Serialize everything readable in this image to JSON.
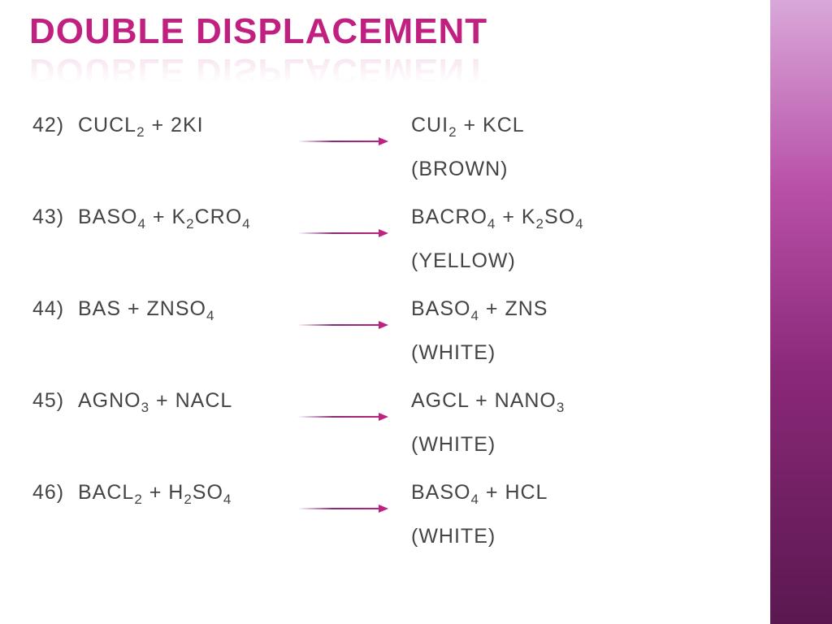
{
  "title": "DOUBLE DISPLACEMENT",
  "title_color": "#c02080",
  "background_color": "#ffffff",
  "sidebar_gradient": [
    "#d9a8d9",
    "#b850a8",
    "#8a2878",
    "#5a1850"
  ],
  "font_size": 25,
  "title_fontsize": 44,
  "reactions": [
    {
      "num": "42)",
      "reactants_html": "CUCL<sub>2</sub> + 2KI",
      "products_html": "CUI<sub>2</sub>  +  KCL",
      "note": "(BROWN)"
    },
    {
      "num": "43)",
      "reactants_html": "BASO<sub>4</sub> + K<sub>2</sub>CRO<sub>4</sub>",
      "products_html": "BACRO<sub>4</sub> + K<sub>2</sub>SO<sub>4</sub>",
      "note": "(YELLOW)"
    },
    {
      "num": "44)",
      "reactants_html": "BAS + ZNSO<sub>4</sub>",
      "products_html": "BASO<sub>4</sub> + ZNS",
      "note": "(WHITE)"
    },
    {
      "num": "45)",
      "reactants_html": "AGNO<sub>3</sub> + NACL",
      "products_html": "AGCL + NANO<sub>3</sub>",
      "note": "(WHITE)"
    },
    {
      "num": "46)",
      "reactants_html": "BACL<sub>2</sub> + H<sub>2</sub>SO<sub>4</sub>",
      "products_html": "BASO<sub>4</sub> + HCL",
      "note": "(WHITE)"
    }
  ]
}
